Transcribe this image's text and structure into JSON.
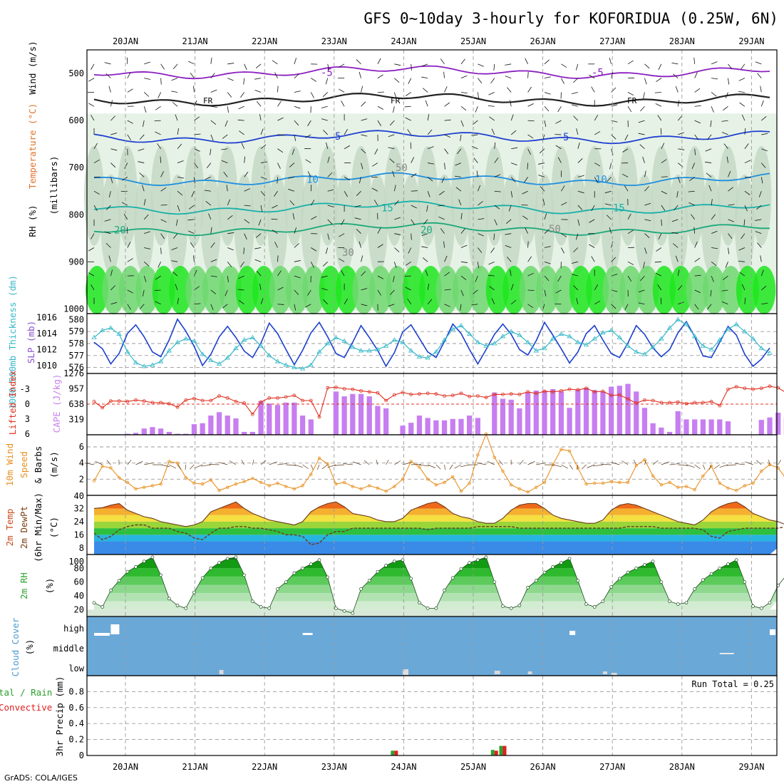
{
  "title": "GFS 0~10day 3-hourly for KOFORIDUA (0.25W, 6N)",
  "credit": "GrADS: COLA/IGES",
  "colors": {
    "rh_light": "#e6f2e6",
    "rh_mid": "#c3d7c3",
    "rh_dark": "#9fb59f",
    "rh_green": "#6fd86f",
    "rh_bright": "#1ee61e",
    "temp_contour_purple": "#8a1fc0",
    "temp_contour_blue": "#2040d0",
    "temp_contour_cyan": "#1e8fe0",
    "temp_contour_teal": "#18b0a8",
    "thickness": "#36b8c8",
    "slp": "#1b3fcf",
    "cape": "#c77ef0",
    "lifted_index": "#e03020",
    "wind": "#e89020",
    "cloud_bg": "#6aa8d8",
    "precip_total": "#2ea02e",
    "precip_conv": "#e02020"
  },
  "chart_data": [
    {
      "type": "heatmap",
      "name": "pressure-cross-section",
      "ylabels_left": [
        "Wind (m/s)",
        "Temperature (°C)",
        "RH (%)"
      ],
      "yaxis_title": "(millibars)",
      "x_dates": [
        "20JAN",
        "21JAN",
        "22JAN",
        "23JAN",
        "24JAN",
        "25JAN",
        "26JAN",
        "27JAN",
        "28JAN",
        "29JAN"
      ],
      "y_ticks": [
        500,
        600,
        700,
        800,
        900,
        1000
      ],
      "contour_labels": [
        {
          "text": "-5",
          "level": -5
        },
        {
          "text": "FR",
          "level": 0
        },
        {
          "text": "5",
          "level": 5
        },
        {
          "text": "10",
          "level": 10
        },
        {
          "text": "15",
          "level": 15
        },
        {
          "text": "20",
          "level": 20
        },
        {
          "text": "30",
          "level": 30
        },
        {
          "text": "50",
          "level": 50
        }
      ],
      "temperature_contours": [
        {
          "level": -5,
          "pressure_mb": 497
        },
        {
          "level": 0,
          "pressure_mb": 555
        },
        {
          "level": 5,
          "pressure_mb": 635
        },
        {
          "level": 10,
          "pressure_mb": 725
        },
        {
          "level": 15,
          "pressure_mb": 785
        },
        {
          "level": 20,
          "pressure_mb": 830
        }
      ]
    },
    {
      "type": "line",
      "name": "thickness-slp",
      "ylabel_left": "1000-500mb Thickness (dm)",
      "ylabel_right": "SLP (mb)",
      "ylim_left": [
        575.5,
        580.5
      ],
      "y_ticks_left": [
        576,
        577,
        578,
        579,
        580
      ],
      "ylim_right": [
        1009,
        1016.5
      ],
      "y_ticks_right": [
        1010,
        1012,
        1014,
        1016
      ],
      "series": [
        {
          "name": "SLP (mb)",
          "values": [
            1012.9,
            1012.1,
            1010.2,
            1011.5,
            1014.0,
            1015.1,
            1013.6,
            1011.7,
            1011.1,
            1013.2,
            1015.8,
            1014.3,
            1012.4,
            1010.0,
            1011.4,
            1013.6,
            1014.9,
            1013.5,
            1011.8,
            1011.0,
            1012.8,
            1015.3,
            1014.0,
            1012.0,
            1010.1,
            1011.9,
            1014.1,
            1015.4,
            1013.6,
            1011.5,
            1011.0,
            1012.9,
            1015.0,
            1013.5,
            1011.9,
            1009.9,
            1011.6,
            1014.2,
            1015.1,
            1013.4,
            1011.7,
            1011.0,
            1013.0,
            1015.2,
            1014.0,
            1012.0,
            1010.2,
            1012.0,
            1013.9,
            1015.2,
            1013.9,
            1012.0,
            1011.3,
            1013.1,
            1015.4,
            1013.8,
            1012.1,
            1010.3,
            1011.7,
            1014.0,
            1015.0,
            1013.2,
            1011.5,
            1011.0,
            1012.8,
            1015.0,
            1013.9,
            1012.2,
            1011.1,
            1012.0,
            1014.1,
            1015.5,
            1013.6,
            1011.2,
            1011.0,
            1012.9,
            1014.9,
            1013.8,
            1011.4,
            1009.9,
            1010.8,
            1012.2
          ]
        },
        {
          "name": "1000-500mb Thickness (dm)",
          "values": [
            578.5,
            579.1,
            579.3,
            578.8,
            577.3,
            576.4,
            576.1,
            576.2,
            576.5,
            577.4,
            578.1,
            578.4,
            578.2,
            577.1,
            576.6,
            576.3,
            576.8,
            577.6,
            578.3,
            578.5,
            577.8,
            577.0,
            576.5,
            576.2,
            576.0,
            575.9,
            576.2,
            577.3,
            578.0,
            578.5,
            578.2,
            577.7,
            577.4,
            577.4,
            577.5,
            577.8,
            578.3,
            578.1,
            577.4,
            576.9,
            576.8,
            577.3,
            578.3,
            579.2,
            579.5,
            578.8,
            578.1,
            577.8,
            578.0,
            578.6,
            579.0,
            578.7,
            578.1,
            577.4,
            577.6,
            578.4,
            578.8,
            578.6,
            578.1,
            577.9,
            578.4,
            578.9,
            579.1,
            578.5,
            577.8,
            577.3,
            577.1,
            577.7,
            578.4,
            579.3,
            580.0,
            579.6,
            578.6,
            577.8,
            577.5,
            578.3,
            579.2,
            579.6,
            579.0,
            578.4,
            577.6,
            577.2
          ]
        }
      ]
    },
    {
      "type": "bar",
      "name": "cape-lifted-index",
      "ylabel_left": "Lifted Index",
      "ylabel_right": "CAPE (J/kg)",
      "y_ticks_left": [
        "-3",
        "0",
        "3",
        "6"
      ],
      "y_ticks_right": [
        319,
        638,
        957,
        1276
      ],
      "ylim_cape": [
        0,
        1276
      ],
      "ylim_li": [
        -6,
        6
      ],
      "series": [
        {
          "name": "CAPE (J/kg)",
          "values": [
            0,
            0,
            0,
            0,
            20,
            40,
            130,
            160,
            130,
            60,
            20,
            20,
            220,
            240,
            400,
            470,
            400,
            340,
            60,
            60,
            700,
            650,
            620,
            670,
            670,
            400,
            320,
            0,
            0,
            900,
            800,
            850,
            850,
            800,
            600,
            550,
            0,
            190,
            250,
            400,
            350,
            300,
            300,
            330,
            330,
            400,
            350,
            0,
            880,
            750,
            730,
            550,
            880,
            920,
            920,
            950,
            900,
            560,
            940,
            980,
            930,
            900,
            1000,
            1020,
            1060,
            900,
            560,
            240,
            150,
            60,
            490,
            320,
            320,
            320,
            320,
            320,
            280,
            0,
            0,
            0,
            310,
            360,
            460,
            360,
            240,
            70
          ]
        },
        {
          "name": "Lifted Index",
          "values": [
            -0.5,
            0.7,
            -0.6,
            -0.6,
            -0.5,
            -0.8,
            -0.6,
            -0.3,
            -0.3,
            -0.1,
            0.6,
            -0.8,
            -1.1,
            -0.7,
            -0.7,
            -1.6,
            -1.2,
            -0.5,
            -0.2,
            2.0,
            -0.4,
            -1.2,
            -1.2,
            -1.4,
            -1.7,
            -0.7,
            -0.7,
            2.5,
            -3.2,
            -3.3,
            -3.0,
            -2.9,
            -2.6,
            -2.4,
            -2.2,
            -0.7,
            -1.8,
            -2.3,
            -1.9,
            -2.0,
            -2.1,
            -2.0,
            -1.6,
            -1.7,
            -2.1,
            -1.5,
            -1.6,
            -1.3,
            -1.9,
            -1.9,
            -2.0,
            -1.9,
            -2.4,
            -2.1,
            -2.5,
            -2.4,
            -2.6,
            -2.9,
            -2.8,
            -3.1,
            -2.4,
            -2.5,
            -1.7,
            -1.8,
            -1.0,
            -0.2,
            -0.8,
            -0.7,
            -0.3,
            -0.3,
            -0.4,
            -0.1,
            -0.3,
            -0.3,
            -0.5,
            0.3,
            -2.9,
            -3.4,
            -3.1,
            -2.9,
            -3.1,
            -3.5,
            -3.2,
            -2.2
          ]
        }
      ]
    },
    {
      "type": "line",
      "name": "wind10m",
      "ylabel": "10m Wind Speed & Barbs (m/s)",
      "ylim": [
        0,
        7.5
      ],
      "y_ticks": [
        2,
        4,
        6
      ],
      "series": [
        {
          "name": "Speed",
          "values": [
            1.8,
            3.6,
            3.4,
            2.2,
            1.6,
            0.8,
            1.0,
            1.2,
            1.4,
            4.2,
            4.0,
            2.2,
            1.5,
            1.4,
            1.9,
            0.6,
            1.0,
            1.4,
            1.7,
            2.1,
            1.6,
            1.2,
            1.5,
            1.1,
            0.8,
            1.2,
            2.6,
            4.6,
            3.9,
            1.4,
            1.6,
            1.1,
            0.8,
            1.2,
            0.9,
            0.5,
            1.1,
            2.0,
            4.2,
            3.5,
            2.0,
            1.3,
            1.6,
            2.3,
            0.5,
            1.5,
            5.0,
            7.6,
            4.7,
            3.0,
            1.3,
            0.8,
            0.4,
            1.0,
            1.6,
            3.8,
            5.7,
            5.5,
            3.4,
            1.4,
            1.5,
            1.5,
            1.7,
            1.6,
            1.6,
            3.7,
            4.4,
            2.4,
            1.3,
            1.6,
            1.0,
            1.1,
            0.7,
            2.4,
            3.6,
            1.5,
            0.9,
            0.6,
            1.2,
            1.5,
            3.0,
            3.8,
            3.4,
            2.0,
            1.5,
            1.2
          ]
        }
      ]
    },
    {
      "type": "area",
      "name": "temp-dewpt",
      "ylabel": "2m Temp 2m DewPt (6hr Min/Max) (°C)",
      "ylim": [
        4,
        40
      ],
      "y_ticks": [
        8,
        16,
        24,
        32,
        40
      ],
      "series": [
        {
          "name": "2m Temp",
          "values": [
            32,
            32.5,
            34,
            35,
            31,
            29,
            27,
            26,
            24,
            23,
            22,
            21,
            22,
            24,
            30,
            32,
            34,
            36,
            32,
            29,
            27,
            25,
            24,
            23,
            22,
            24,
            30,
            33,
            35,
            36,
            33,
            29,
            28,
            27,
            25,
            24,
            24,
            26,
            31,
            33,
            35,
            36,
            33,
            29,
            27,
            26,
            24,
            23,
            23,
            26,
            31,
            34,
            35,
            35,
            32,
            28,
            26,
            25,
            24,
            23,
            23,
            25,
            31,
            34,
            35,
            34,
            32,
            30,
            28,
            26,
            24,
            23,
            22,
            25,
            30,
            33,
            35,
            36,
            33,
            29,
            27,
            25,
            24,
            22,
            21,
            21
          ]
        },
        {
          "name": "2m DewPt",
          "values": [
            17,
            13,
            15,
            19,
            21,
            22,
            22,
            20,
            20,
            20,
            18,
            17,
            14,
            13,
            17,
            20,
            20,
            21,
            21,
            20,
            20,
            19,
            18,
            16,
            16,
            15,
            10,
            11,
            16,
            18,
            18,
            20,
            20,
            20,
            20,
            20,
            20,
            20,
            20,
            20,
            19,
            20,
            20,
            20,
            20,
            20,
            21,
            21,
            21,
            21,
            21,
            20,
            20,
            20,
            20,
            20,
            20,
            20,
            20,
            20,
            20,
            20,
            20,
            20,
            21,
            21,
            21,
            21,
            20,
            20,
            20,
            20,
            20,
            19,
            15,
            14,
            18,
            19,
            20,
            20,
            20,
            20,
            20,
            21,
            22,
            22
          ]
        }
      ]
    },
    {
      "type": "area",
      "name": "rh2m",
      "ylabel": "2m RH (%)",
      "ylim": [
        10,
        100
      ],
      "y_ticks": [
        20,
        40,
        60,
        80
      ],
      "series": [
        {
          "name": "2m RH",
          "values": [
            30,
            24,
            48,
            62,
            75,
            82,
            90,
            96,
            70,
            36,
            26,
            22,
            45,
            66,
            80,
            88,
            94,
            96,
            70,
            32,
            24,
            22,
            50,
            60,
            73,
            80,
            86,
            92,
            67,
            22,
            18,
            15,
            50,
            62,
            75,
            84,
            90,
            92,
            65,
            30,
            22,
            22,
            48,
            66,
            79,
            88,
            92,
            96,
            60,
            25,
            22,
            26,
            52,
            62,
            74,
            82,
            88,
            94,
            62,
            28,
            24,
            32,
            53,
            65,
            74,
            80,
            85,
            90,
            60,
            32,
            28,
            30,
            50,
            63,
            72,
            80,
            86,
            92,
            60,
            25,
            22,
            30,
            55,
            70,
            85,
            92,
            96
          ]
        }
      ]
    },
    {
      "type": "table",
      "name": "cloud-cover",
      "ylabel": "Cloud Cover (%)",
      "rows": [
        "high",
        "middle",
        "low"
      ]
    },
    {
      "type": "bar",
      "name": "precip3hr",
      "ylabel": "3hr Precip (mm)",
      "ylabel_left": "Total / Rain Convective",
      "run_total": "Run Total = 0.25",
      "ylim": [
        0,
        1.0
      ],
      "y_ticks": [
        0,
        0.2,
        0.4,
        0.6,
        0.8
      ],
      "series": [
        {
          "name": "Total",
          "values": [
            0,
            0,
            0,
            0,
            0,
            0,
            0,
            0,
            0,
            0,
            0,
            0,
            0,
            0,
            0,
            0,
            0,
            0,
            0,
            0,
            0,
            0,
            0,
            0,
            0,
            0,
            0,
            0,
            0,
            0,
            0,
            0,
            0,
            0,
            0,
            0,
            0.06,
            0,
            0,
            0,
            0,
            0,
            0,
            0,
            0,
            0,
            0,
            0,
            0.07,
            0.12,
            0,
            0,
            0,
            0,
            0,
            0,
            0,
            0,
            0,
            0,
            0,
            0,
            0,
            0,
            0,
            0,
            0,
            0,
            0,
            0,
            0,
            0,
            0,
            0,
            0,
            0,
            0,
            0,
            0,
            0,
            0,
            0
          ]
        },
        {
          "name": "Convective",
          "values": [
            0,
            0,
            0,
            0,
            0,
            0,
            0,
            0,
            0,
            0,
            0,
            0,
            0,
            0,
            0,
            0,
            0,
            0,
            0,
            0,
            0,
            0,
            0,
            0,
            0,
            0,
            0,
            0,
            0,
            0,
            0,
            0,
            0,
            0,
            0,
            0,
            0.06,
            0,
            0,
            0,
            0,
            0,
            0,
            0,
            0,
            0,
            0,
            0,
            0.06,
            0.12,
            0,
            0,
            0,
            0,
            0,
            0,
            0,
            0,
            0,
            0,
            0,
            0,
            0,
            0,
            0,
            0,
            0,
            0,
            0,
            0,
            0,
            0,
            0,
            0,
            0,
            0,
            0,
            0,
            0,
            0,
            0,
            0
          ]
        }
      ]
    }
  ]
}
